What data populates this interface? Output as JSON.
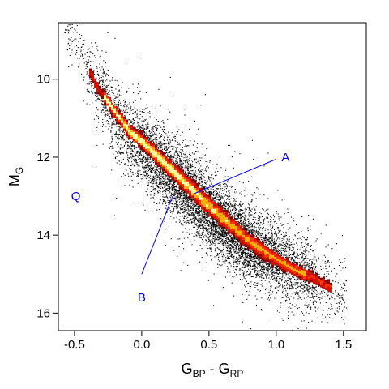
{
  "chart_data": {
    "type": "heatmap",
    "title": "",
    "xlabel": {
      "main": "G",
      "sub1": "BP",
      "mid": " - G",
      "sub2": "RP"
    },
    "ylabel": {
      "main": "M",
      "sub": "G"
    },
    "xlim": [
      -0.62,
      1.67
    ],
    "ylim": [
      16.45,
      8.55
    ],
    "y_inverted": true,
    "x_ticks": [
      -0.5,
      0.0,
      0.5,
      1.0,
      1.5
    ],
    "x_tick_labels": [
      "-0.5",
      "0.0",
      "0.5",
      "1.0",
      "1.5"
    ],
    "y_ticks": [
      10,
      12,
      14,
      16
    ],
    "y_tick_labels": [
      "10",
      "12",
      "14",
      "16"
    ],
    "grid": false,
    "legend": "none",
    "colors": {
      "points": "#000000",
      "density_low": "#8b0000",
      "density_mid": "#ff3000",
      "density_high": "#ffffa0",
      "annotation": "#0000ff"
    },
    "ridge": [
      {
        "x": -0.55,
        "y": 8.6
      },
      {
        "x": -0.45,
        "y": 9.4
      },
      {
        "x": -0.35,
        "y": 10.1
      },
      {
        "x": -0.25,
        "y": 10.6
      },
      {
        "x": -0.1,
        "y": 11.3
      },
      {
        "x": 0.05,
        "y": 11.75
      },
      {
        "x": 0.2,
        "y": 12.25
      },
      {
        "x": 0.35,
        "y": 12.75
      },
      {
        "x": 0.5,
        "y": 13.25
      },
      {
        "x": 0.65,
        "y": 13.7
      },
      {
        "x": 0.8,
        "y": 14.15
      },
      {
        "x": 0.95,
        "y": 14.5
      },
      {
        "x": 1.1,
        "y": 14.8
      },
      {
        "x": 1.25,
        "y": 15.05
      },
      {
        "x": 1.45,
        "y": 15.4
      }
    ],
    "secondary_ridge": [
      {
        "x": -0.2,
        "y": 11.5
      },
      {
        "x": 0.0,
        "y": 12.2
      },
      {
        "x": 0.2,
        "y": 12.9
      },
      {
        "x": 0.4,
        "y": 13.5
      },
      {
        "x": 0.6,
        "y": 14.05
      },
      {
        "x": 0.8,
        "y": 14.5
      }
    ],
    "annotations": [
      {
        "label": "A",
        "text_x": 1.07,
        "text_y": 12.0,
        "line": [
          [
            1.0,
            12.05
          ],
          [
            0.38,
            12.95
          ]
        ]
      },
      {
        "label": "B",
        "text_x": 0.0,
        "text_y": 15.6,
        "line": [
          [
            0.0,
            15.0
          ],
          [
            0.23,
            13.0
          ]
        ]
      },
      {
        "label": "Q",
        "text_x": -0.49,
        "text_y": 13.0,
        "line": null
      }
    ]
  }
}
